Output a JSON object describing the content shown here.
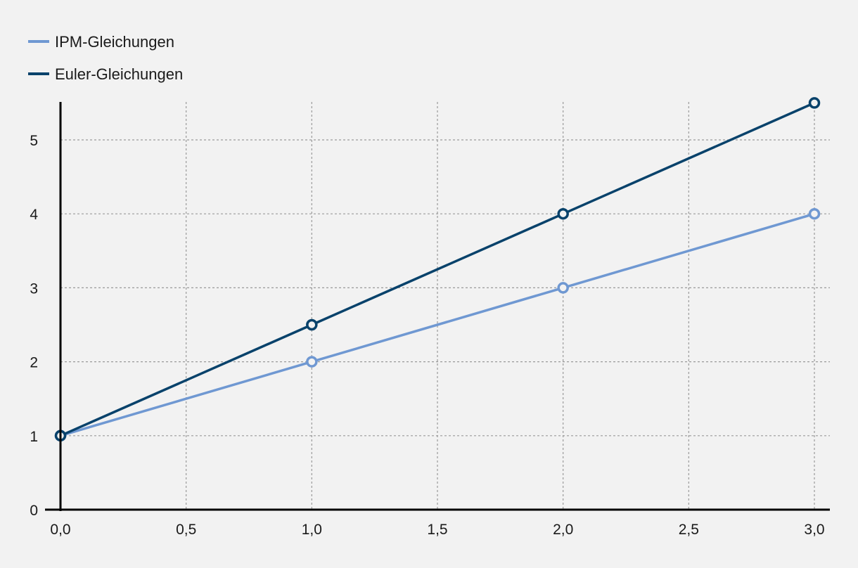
{
  "chart_data": {
    "type": "line",
    "title": "",
    "xlabel": "",
    "ylabel": "",
    "xlim": [
      0,
      3
    ],
    "ylim": [
      0,
      5.5
    ],
    "x_ticks": [
      0,
      0.5,
      1,
      1.5,
      2,
      2.5,
      3
    ],
    "x_tick_labels": [
      "0,0",
      "0,5",
      "1,0",
      "1,5",
      "2,0",
      "2,5",
      "3,0"
    ],
    "y_ticks": [
      0,
      1,
      2,
      3,
      4,
      5
    ],
    "y_tick_labels": [
      "0",
      "1",
      "2",
      "3",
      "4",
      "5"
    ],
    "grid": true,
    "legend_position": "top-left",
    "series": [
      {
        "name": "IPM-Gleichungen",
        "color": "#6f98d2",
        "x": [
          0,
          1,
          2,
          3
        ],
        "y": [
          1,
          2,
          3,
          4
        ]
      },
      {
        "name": "Euler-Gleichungen",
        "color": "#08426b",
        "x": [
          0,
          1,
          2,
          3
        ],
        "y": [
          1,
          2.5,
          4,
          5.5
        ]
      }
    ]
  }
}
